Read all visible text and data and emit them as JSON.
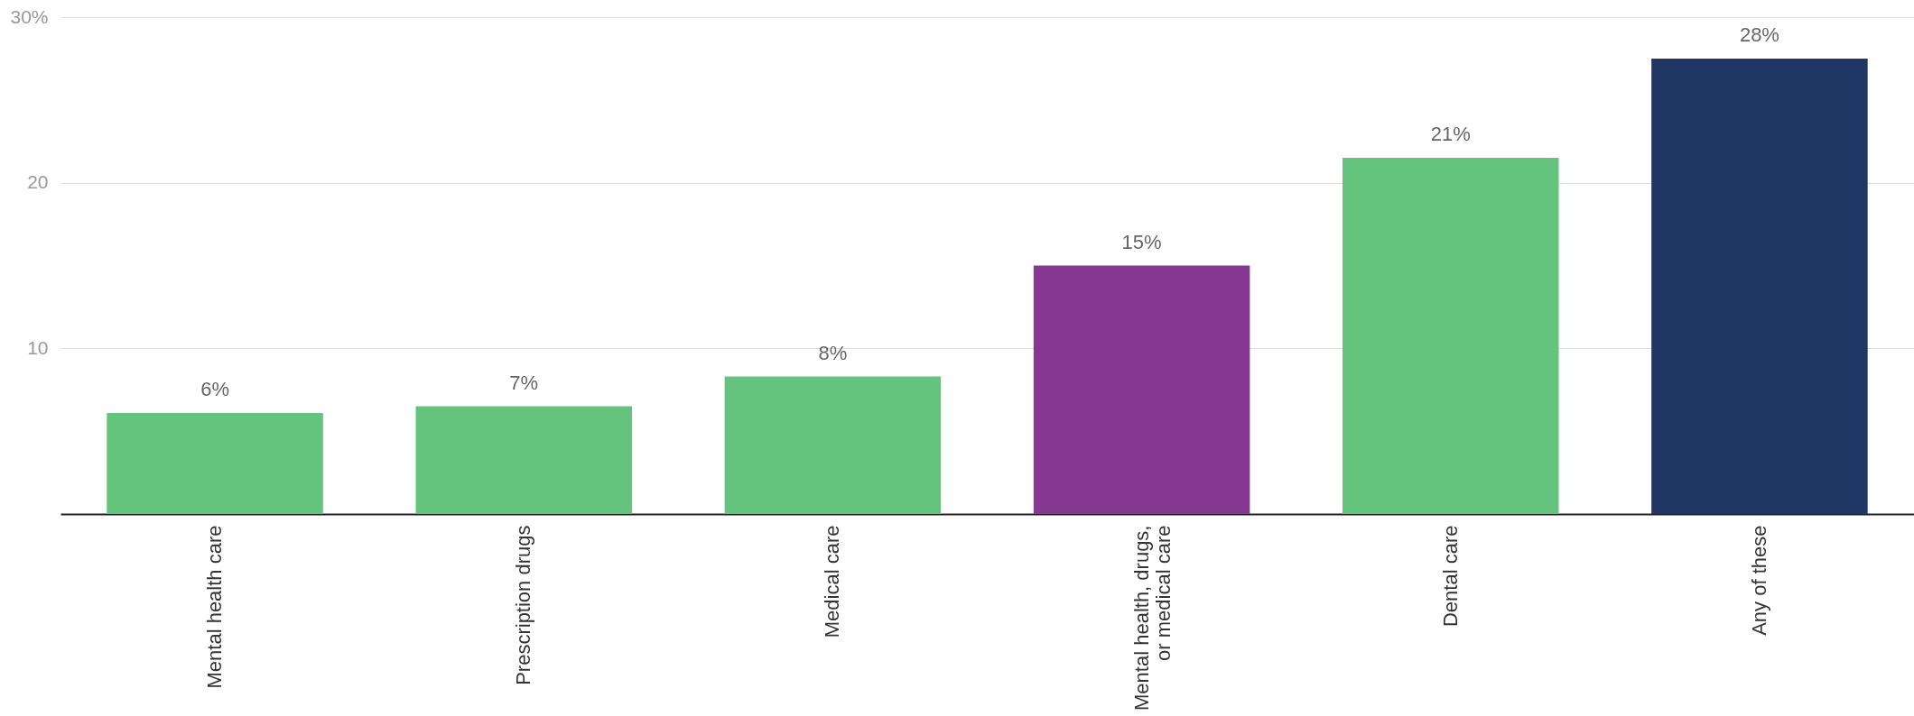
{
  "chart_data": {
    "type": "bar",
    "categories": [
      "Mental health care",
      "Prescription drugs",
      "Medical care",
      "Mental health, drugs, or medical care",
      "Dental care",
      "Any of these"
    ],
    "values": [
      6.1,
      6.5,
      8.3,
      15.0,
      21.5,
      27.5
    ],
    "colors": [
      "#64c47e",
      "#64c47e",
      "#64c47e",
      "#863791",
      "#64c47e",
      "#203766"
    ],
    "value_labels": [
      "6%",
      "7%",
      "8%",
      "15%",
      "21%",
      "28%"
    ],
    "ylim": [
      0,
      30
    ],
    "yticks": [
      10,
      20,
      {
        "value": 30,
        "label": "30%"
      }
    ],
    "grid": "y"
  }
}
